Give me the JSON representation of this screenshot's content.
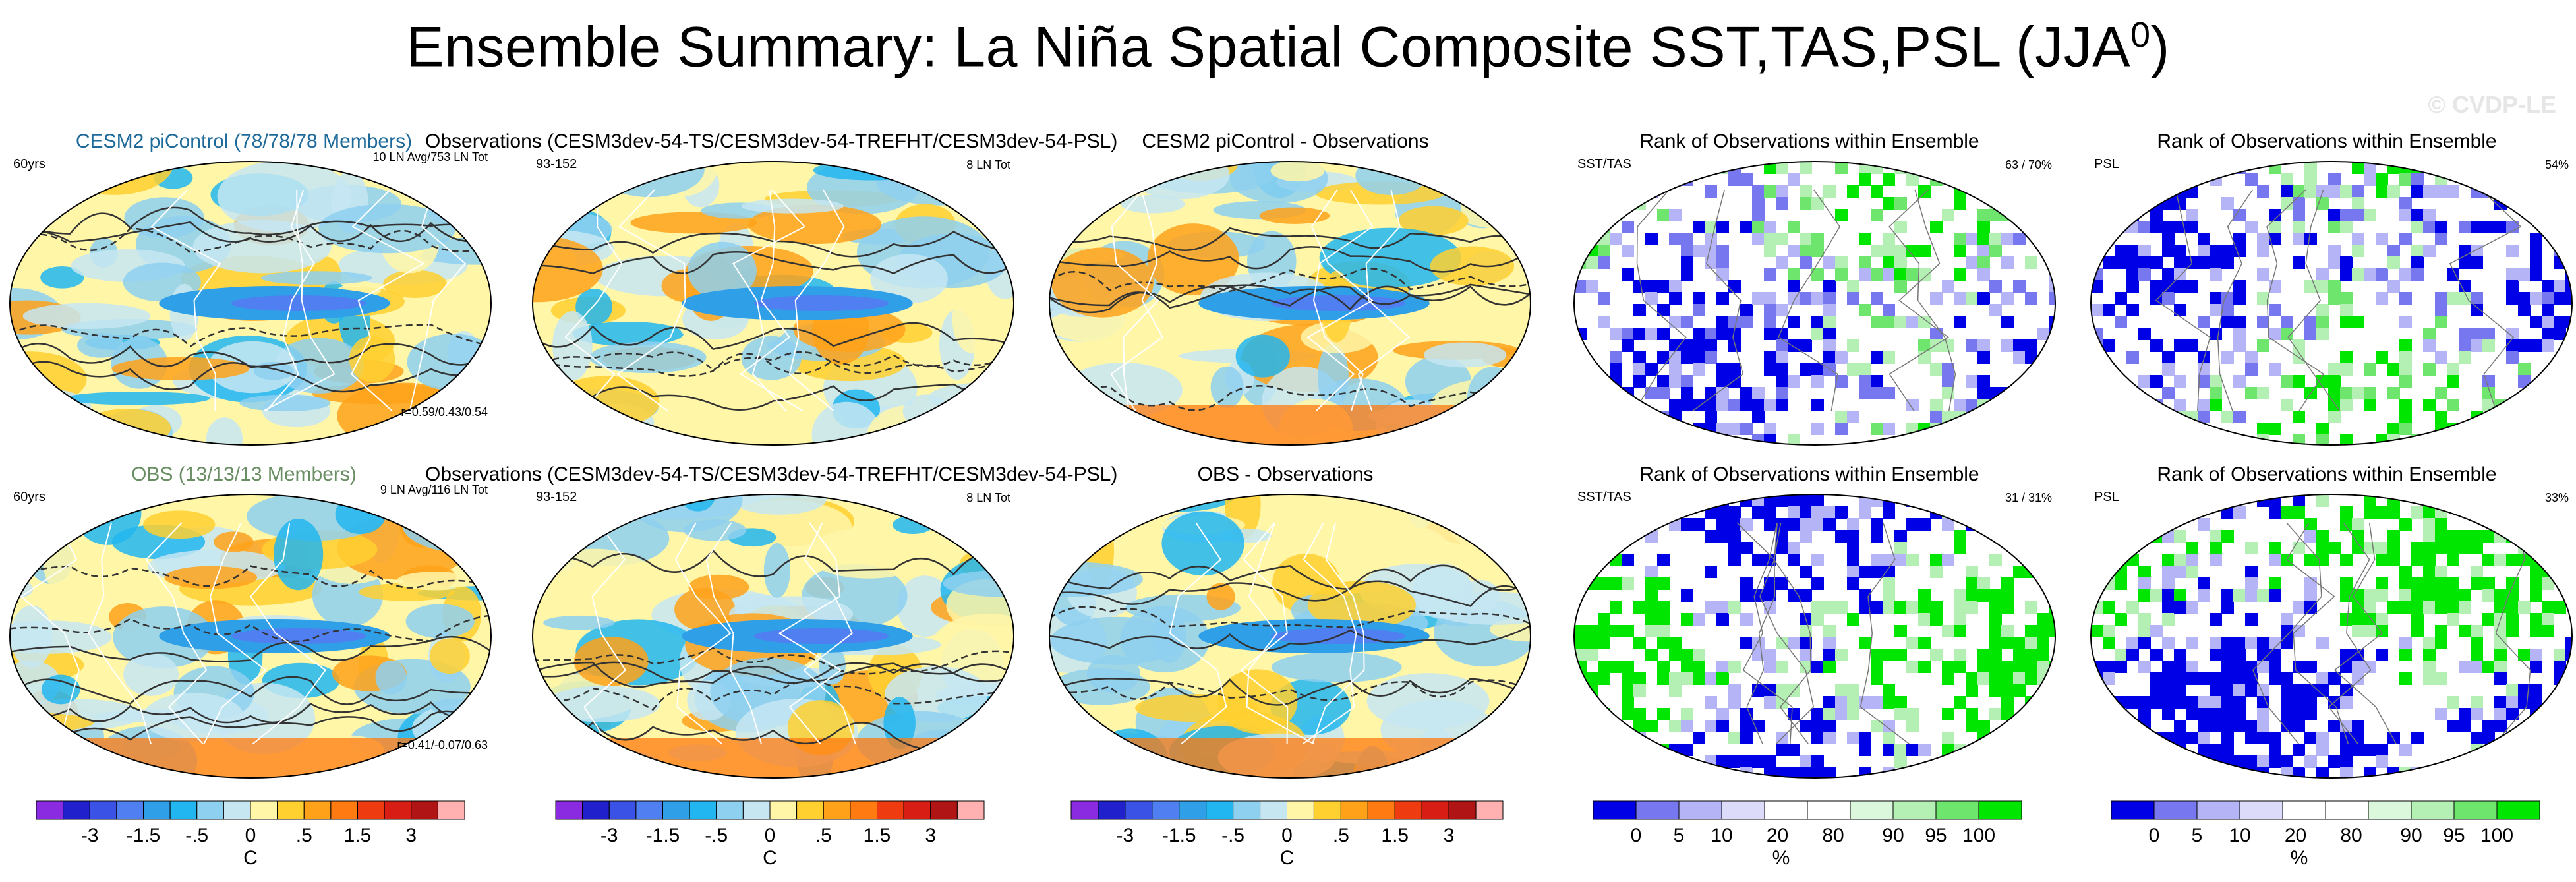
{
  "figure": {
    "title_main": "Ensemble Summary: La Niña Spatial Composite SST,TAS,PSL (JJA",
    "title_sup": "0",
    "title_close": ")",
    "watermark": "© CVDP-LE"
  },
  "panels": [
    {
      "id": "r1c1",
      "title": "CESM2 piControl (78/78/78 Members)",
      "title_color": "blue",
      "left_label": "60yrs",
      "right_label": "10 LN Avg/753 LN Tot",
      "bottom_right": "r=0.59/0.43/0.54",
      "type": "sst"
    },
    {
      "id": "r1c2",
      "title": "Observations (CESM3dev-54-TS/CESM3dev-54-TREFHT/CESM3dev-54-PSL)",
      "title_color": "black",
      "left_label": "93-152",
      "right_label": "8 LN Tot",
      "type": "sst"
    },
    {
      "id": "r1c3",
      "title": "CESM2 piControl - Observations",
      "title_color": "black",
      "type": "sst"
    },
    {
      "id": "r1c4",
      "title": "Rank of Observations within Ensemble",
      "title_color": "black",
      "left_label": "SST/TAS",
      "right_label": "63 /  70%",
      "type": "rank"
    },
    {
      "id": "r1c5",
      "title": "Rank of Observations within Ensemble",
      "title_color": "black",
      "left_label": "PSL",
      "right_label": "54%",
      "type": "rank"
    },
    {
      "id": "r2c1",
      "title": "OBS (13/13/13 Members)",
      "title_color": "green",
      "left_label": "60yrs",
      "right_label": "9 LN Avg/116 LN Tot",
      "bottom_right": "r=0.41/-0.07/0.63",
      "type": "sst"
    },
    {
      "id": "r2c2",
      "title": "Observations (CESM3dev-54-TS/CESM3dev-54-TREFHT/CESM3dev-54-PSL)",
      "title_color": "black",
      "left_label": "93-152",
      "right_label": "8 LN Tot",
      "type": "sst"
    },
    {
      "id": "r2c3",
      "title": "OBS - Observations",
      "title_color": "black",
      "type": "sst"
    },
    {
      "id": "r2c4",
      "title": "Rank of Observations within Ensemble",
      "title_color": "black",
      "left_label": "SST/TAS",
      "right_label": "31 /  31%",
      "type": "rank"
    },
    {
      "id": "r2c5",
      "title": "Rank of Observations within Ensemble",
      "title_color": "black",
      "left_label": "PSL",
      "right_label": "33%",
      "type": "rank"
    }
  ],
  "chart_data": [
    {
      "type": "heatmap",
      "title": "Ensemble Summary: La Niña Spatial Composite SST,TAS,PSL (JJA0)",
      "colorbar": {
        "unit": "C",
        "tick_labels": [
          "-3",
          "-1.5",
          "-.5",
          "0",
          ".5",
          "1.5",
          "3"
        ],
        "colors": [
          "#8a2be2",
          "#2020cc",
          "#3a52e6",
          "#4f7ff0",
          "#2f9fe8",
          "#22b6f0",
          "#8ed0f0",
          "#c6e6f2",
          "#fff6a8",
          "#ffd030",
          "#ffa21a",
          "#ff7a10",
          "#ee3c10",
          "#d81e14",
          "#b01414",
          "#ffb0b0"
        ]
      },
      "panels": [
        "CESM2 piControl (78/78/78 Members)",
        "Observations (CESM3dev-54-TS/CESM3dev-54-TREFHT/CESM3dev-54-PSL)",
        "CESM2 piControl - Observations",
        "OBS (13/13/13 Members)",
        "OBS - Observations"
      ],
      "pattern_correlations": {
        "CESM2 piControl": [
          0.59,
          0.43,
          0.54
        ],
        "OBS": [
          0.41,
          -0.07,
          0.63
        ]
      }
    },
    {
      "type": "heatmap",
      "title": "Rank of Observations within Ensemble",
      "colorbar": {
        "unit": "%",
        "tick_labels": [
          "0",
          "5",
          "10",
          "20",
          "80",
          "90",
          "95",
          "100"
        ],
        "colors": [
          "#0000e6",
          "#7777f0",
          "#b4b4f6",
          "#dcdcfa",
          "#ffffff",
          "#ffffff",
          "#dcf8dc",
          "#b4f0b4",
          "#6ee66e",
          "#00e600"
        ]
      },
      "values_percent": {
        "SST/TAS row1": [
          63,
          70
        ],
        "PSL row1": 54,
        "SST/TAS row2": [
          31,
          31
        ],
        "PSL row2": 33
      }
    }
  ]
}
